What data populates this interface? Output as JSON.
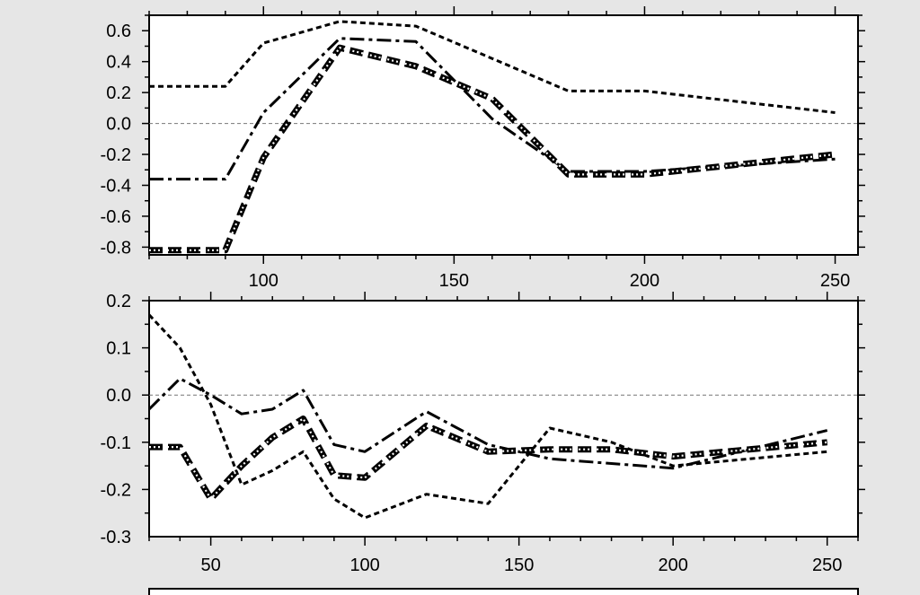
{
  "chart_data": [
    {
      "type": "line",
      "panel": "top",
      "title": "",
      "xlabel": "",
      "ylabel": "",
      "xlim": [
        70,
        256
      ],
      "ylim": [
        -0.85,
        0.7
      ],
      "xticks": [
        100,
        150,
        200,
        250
      ],
      "xtick_labels": [
        "100",
        "150",
        "200",
        "250"
      ],
      "yticks": [
        0.6,
        0.4,
        0.2,
        0.0,
        -0.2,
        -0.4,
        -0.6,
        -0.8
      ],
      "ytick_labels": [
        "0.6",
        "0.4",
        "0.2",
        "0.0",
        "-0.2",
        "-0.4",
        "-0.6",
        "-0.8"
      ],
      "reference_line": 0.0,
      "grid": false,
      "series": [
        {
          "style": "short-dash",
          "color": "#000000",
          "x": [
            70,
            90,
            100,
            120,
            140,
            160,
            180,
            200,
            250
          ],
          "y": [
            0.24,
            0.24,
            0.52,
            0.66,
            0.63,
            0.42,
            0.21,
            0.21,
            0.07
          ]
        },
        {
          "style": "dash-dot",
          "color": "#000000",
          "x": [
            70,
            90,
            100,
            120,
            140,
            160,
            180,
            200,
            250
          ],
          "y": [
            -0.36,
            -0.36,
            0.07,
            0.55,
            0.53,
            0.03,
            -0.31,
            -0.31,
            -0.23
          ]
        },
        {
          "style": "dotted-double",
          "color": "#000000",
          "x": [
            70,
            90,
            100,
            120,
            140,
            160,
            180,
            200,
            250
          ],
          "y": [
            -0.82,
            -0.82,
            -0.22,
            0.49,
            0.37,
            0.16,
            -0.33,
            -0.33,
            -0.2
          ]
        }
      ]
    },
    {
      "type": "line",
      "panel": "bottom",
      "title": "",
      "xlabel": "",
      "ylabel": "",
      "xlim": [
        30,
        260
      ],
      "ylim": [
        -0.3,
        0.2
      ],
      "xticks": [
        50,
        100,
        150,
        200,
        250
      ],
      "xtick_labels": [
        "50",
        "100",
        "150",
        "200",
        "250"
      ],
      "yticks": [
        0.2,
        0.1,
        0.0,
        -0.1,
        -0.2,
        -0.3
      ],
      "ytick_labels": [
        "0.2",
        "0.1",
        "0.0",
        "-0.1",
        "-0.2",
        "-0.3"
      ],
      "reference_line": 0.0,
      "grid": false,
      "series": [
        {
          "style": "short-dash",
          "color": "#000000",
          "x": [
            30,
            40,
            50,
            60,
            70,
            80,
            90,
            100,
            120,
            140,
            160,
            180,
            200,
            250
          ],
          "y": [
            0.17,
            0.1,
            -0.02,
            -0.19,
            -0.16,
            -0.12,
            -0.22,
            -0.26,
            -0.21,
            -0.23,
            -0.07,
            -0.1,
            -0.15,
            -0.12
          ]
        },
        {
          "style": "dash-dot",
          "color": "#000000",
          "x": [
            30,
            40,
            50,
            60,
            70,
            80,
            90,
            100,
            120,
            140,
            160,
            180,
            200,
            250
          ],
          "y": [
            -0.03,
            0.035,
            0.0,
            -0.04,
            -0.03,
            0.01,
            -0.105,
            -0.12,
            -0.035,
            -0.105,
            -0.135,
            -0.145,
            -0.155,
            -0.075
          ]
        },
        {
          "style": "dotted-double",
          "color": "#000000",
          "x": [
            30,
            40,
            50,
            60,
            70,
            80,
            90,
            100,
            120,
            140,
            160,
            180,
            200,
            250
          ],
          "y": [
            -0.11,
            -0.11,
            -0.22,
            -0.15,
            -0.09,
            -0.05,
            -0.17,
            -0.175,
            -0.065,
            -0.12,
            -0.115,
            -0.115,
            -0.13,
            -0.1
          ]
        }
      ]
    }
  ]
}
